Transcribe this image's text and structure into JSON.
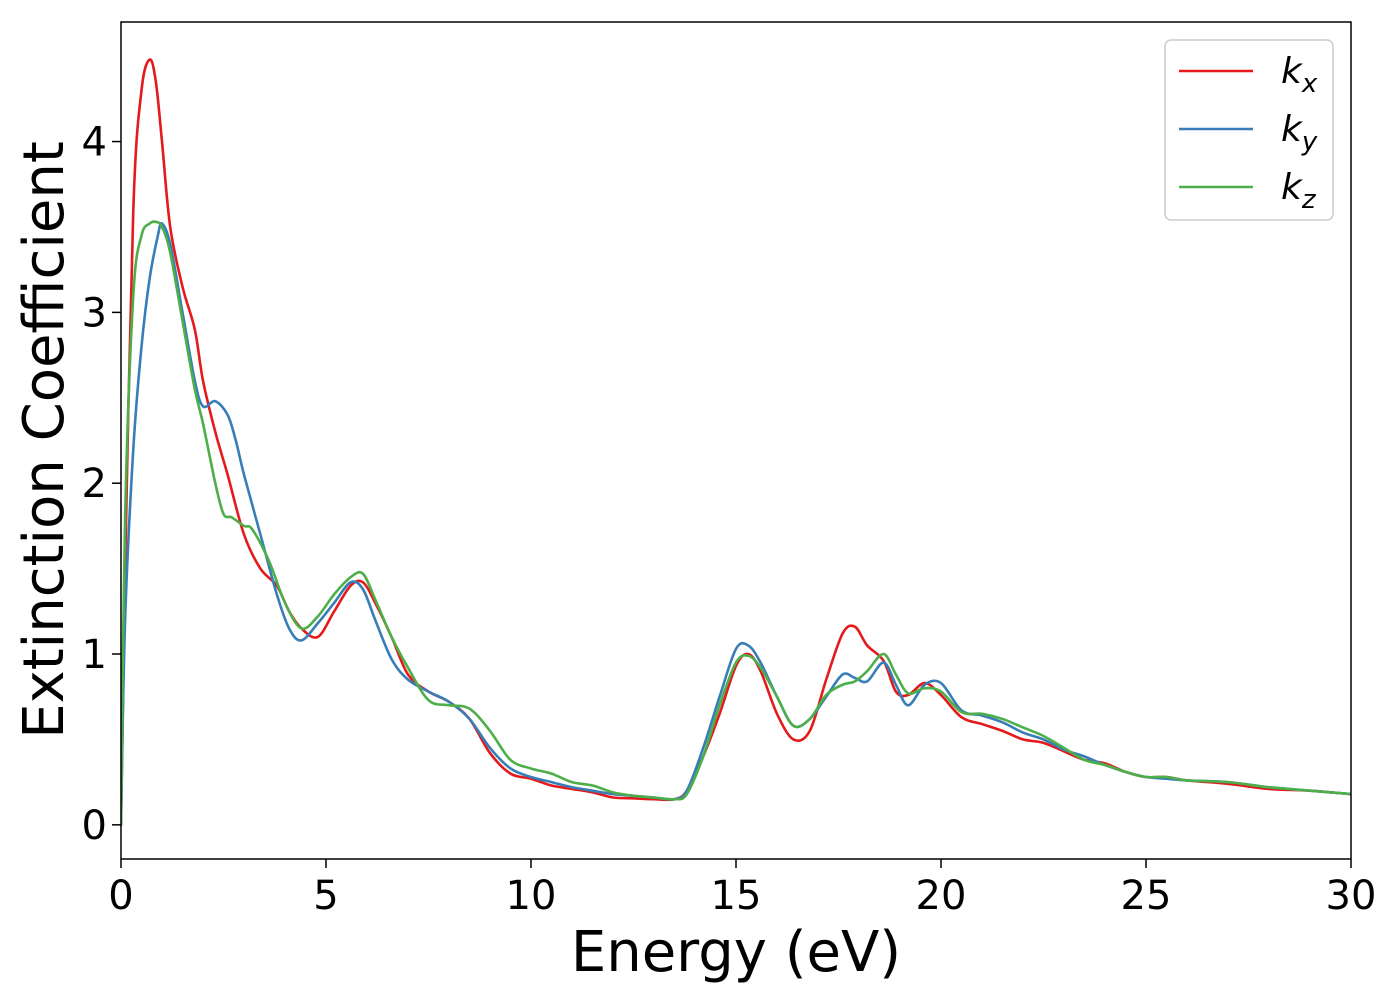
{
  "chart_data": {
    "type": "line",
    "title": "",
    "xlabel": "Energy (eV)",
    "ylabel": "Extinction Coefficient",
    "xlim": [
      0,
      30
    ],
    "ylim": [
      -0.2,
      4.7
    ],
    "xticks": [
      0,
      5,
      10,
      15,
      20,
      25,
      30
    ],
    "yticks": [
      0,
      1,
      2,
      3,
      4
    ],
    "grid": false,
    "legend_position": "top-right",
    "series": [
      {
        "name": "k_x",
        "label_base": "k",
        "label_sub": "x",
        "color": "#e41a1c",
        "x": [
          0,
          0.1,
          0.3,
          0.5,
          0.7,
          0.85,
          1.0,
          1.2,
          1.5,
          1.8,
          2.0,
          2.3,
          2.6,
          3.0,
          3.4,
          3.8,
          4.1,
          4.4,
          4.8,
          5.2,
          5.6,
          5.9,
          6.2,
          6.6,
          7.0,
          7.5,
          8.0,
          8.5,
          9.0,
          9.5,
          10.0,
          10.5,
          11.0,
          11.5,
          12.0,
          12.5,
          13.0,
          13.5,
          13.8,
          14.2,
          14.6,
          15.0,
          15.3,
          15.6,
          16.0,
          16.4,
          16.8,
          17.2,
          17.6,
          17.9,
          18.2,
          18.6,
          18.9,
          19.2,
          19.6,
          20.0,
          20.5,
          21.0,
          21.5,
          22.0,
          22.5,
          23.0,
          23.5,
          24.0,
          24.5,
          25.0,
          25.5,
          26.0,
          27.0,
          28.0,
          29.0,
          30.0
        ],
        "y": [
          0.0,
          1.5,
          3.6,
          4.3,
          4.48,
          4.35,
          4.0,
          3.5,
          3.15,
          2.9,
          2.6,
          2.3,
          2.05,
          1.7,
          1.5,
          1.4,
          1.25,
          1.15,
          1.1,
          1.25,
          1.4,
          1.42,
          1.3,
          1.1,
          0.88,
          0.78,
          0.72,
          0.62,
          0.42,
          0.3,
          0.27,
          0.23,
          0.21,
          0.19,
          0.16,
          0.155,
          0.15,
          0.15,
          0.2,
          0.4,
          0.65,
          0.93,
          1.0,
          0.9,
          0.65,
          0.5,
          0.55,
          0.85,
          1.12,
          1.16,
          1.05,
          0.96,
          0.78,
          0.76,
          0.83,
          0.76,
          0.63,
          0.59,
          0.55,
          0.5,
          0.48,
          0.43,
          0.38,
          0.36,
          0.31,
          0.28,
          0.28,
          0.26,
          0.24,
          0.21,
          0.2,
          0.18
        ]
      },
      {
        "name": "k_y",
        "label_base": "k",
        "label_sub": "y",
        "color": "#377eb8",
        "x": [
          0,
          0.1,
          0.3,
          0.5,
          0.7,
          0.9,
          1.0,
          1.2,
          1.5,
          1.8,
          2.0,
          2.3,
          2.6,
          2.8,
          3.0,
          3.4,
          3.8,
          4.1,
          4.4,
          4.8,
          5.2,
          5.6,
          5.9,
          6.2,
          6.6,
          7.0,
          7.5,
          8.0,
          8.5,
          9.0,
          9.5,
          10.0,
          10.5,
          11.0,
          11.5,
          12.0,
          12.5,
          13.0,
          13.5,
          13.8,
          14.2,
          14.6,
          15.0,
          15.3,
          15.6,
          16.0,
          16.4,
          16.8,
          17.2,
          17.6,
          17.9,
          18.2,
          18.6,
          18.9,
          19.2,
          19.6,
          20.0,
          20.5,
          21.0,
          21.5,
          22.0,
          22.5,
          23.0,
          23.5,
          24.0,
          24.5,
          25.0,
          25.5,
          26.0,
          27.0,
          28.0,
          29.0,
          30.0
        ],
        "y": [
          0.0,
          1.2,
          2.2,
          2.8,
          3.2,
          3.45,
          3.52,
          3.4,
          3.0,
          2.6,
          2.45,
          2.48,
          2.4,
          2.25,
          2.05,
          1.7,
          1.35,
          1.15,
          1.08,
          1.18,
          1.3,
          1.42,
          1.38,
          1.2,
          0.97,
          0.85,
          0.78,
          0.72,
          0.62,
          0.45,
          0.33,
          0.28,
          0.25,
          0.22,
          0.2,
          0.18,
          0.17,
          0.16,
          0.15,
          0.2,
          0.45,
          0.75,
          1.03,
          1.05,
          0.95,
          0.75,
          0.58,
          0.62,
          0.75,
          0.88,
          0.86,
          0.84,
          0.95,
          0.82,
          0.7,
          0.82,
          0.83,
          0.67,
          0.64,
          0.6,
          0.54,
          0.5,
          0.44,
          0.4,
          0.35,
          0.31,
          0.28,
          0.27,
          0.26,
          0.25,
          0.22,
          0.2,
          0.18
        ]
      },
      {
        "name": "k_z",
        "label_base": "k",
        "label_sub": "z",
        "color": "#4daf4a",
        "x": [
          0,
          0.1,
          0.3,
          0.5,
          0.7,
          0.85,
          1.0,
          1.2,
          1.5,
          1.8,
          2.0,
          2.3,
          2.5,
          2.7,
          3.0,
          3.2,
          3.6,
          4.0,
          4.4,
          4.8,
          5.2,
          5.6,
          5.9,
          6.2,
          6.6,
          7.0,
          7.5,
          8.0,
          8.5,
          9.0,
          9.5,
          10.0,
          10.5,
          11.0,
          11.5,
          12.0,
          12.5,
          13.0,
          13.5,
          13.8,
          14.2,
          14.6,
          15.0,
          15.3,
          15.6,
          16.0,
          16.4,
          16.8,
          17.2,
          17.6,
          17.9,
          18.2,
          18.6,
          18.9,
          19.2,
          19.6,
          20.0,
          20.5,
          21.0,
          21.5,
          22.0,
          22.5,
          23.0,
          23.5,
          24.0,
          24.5,
          25.0,
          25.5,
          26.0,
          27.0,
          28.0,
          29.0,
          30.0
        ],
        "y": [
          0.0,
          1.8,
          3.1,
          3.45,
          3.52,
          3.53,
          3.5,
          3.35,
          2.95,
          2.55,
          2.35,
          2.0,
          1.82,
          1.8,
          1.75,
          1.73,
          1.55,
          1.3,
          1.15,
          1.22,
          1.35,
          1.45,
          1.47,
          1.32,
          1.1,
          0.92,
          0.73,
          0.7,
          0.68,
          0.55,
          0.38,
          0.33,
          0.3,
          0.25,
          0.23,
          0.19,
          0.17,
          0.16,
          0.15,
          0.18,
          0.4,
          0.7,
          0.95,
          0.99,
          0.92,
          0.75,
          0.58,
          0.62,
          0.76,
          0.82,
          0.84,
          0.9,
          1.0,
          0.88,
          0.77,
          0.8,
          0.78,
          0.66,
          0.65,
          0.62,
          0.57,
          0.52,
          0.45,
          0.38,
          0.35,
          0.31,
          0.28,
          0.28,
          0.26,
          0.25,
          0.22,
          0.2,
          0.18
        ]
      }
    ]
  }
}
